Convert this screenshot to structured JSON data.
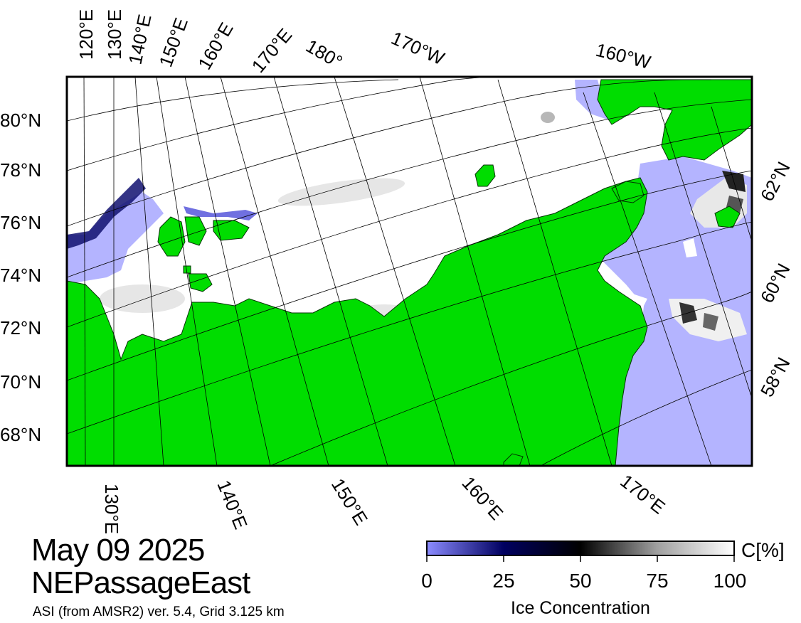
{
  "map": {
    "colors": {
      "land": "#00dd00",
      "water": "#b4b4ff",
      "ice": "#ffffff",
      "frame": "#000000",
      "graticule": "#000000"
    },
    "top_lon_labels": [
      "120°E",
      "130°E",
      "140°E",
      "150°E",
      "160°E",
      "170°E",
      "180°",
      "170°W",
      "160°W"
    ],
    "bottom_lon_labels": [
      "130°E",
      "140°E",
      "150°E",
      "160°E",
      "170°E"
    ],
    "left_lat_labels": [
      "80°N",
      "78°N",
      "76°N",
      "74°N",
      "72°N",
      "70°N",
      "68°N"
    ],
    "right_lat_labels": [
      "62°N",
      "60°N",
      "58°N"
    ]
  },
  "title": {
    "date": "May 09 2025",
    "region": "NEPassageEast",
    "source": "ASI (from AMSR2) ver. 5.4,  Grid 3.125 km"
  },
  "colorbar": {
    "title": "Ice Concentration",
    "unit": "C[%]",
    "ticks": [
      "0",
      "25",
      "50",
      "75",
      "100"
    ],
    "stops": [
      "#8c8cff",
      "#000060",
      "#000000",
      "#a0a0a0",
      "#ffffff"
    ]
  }
}
